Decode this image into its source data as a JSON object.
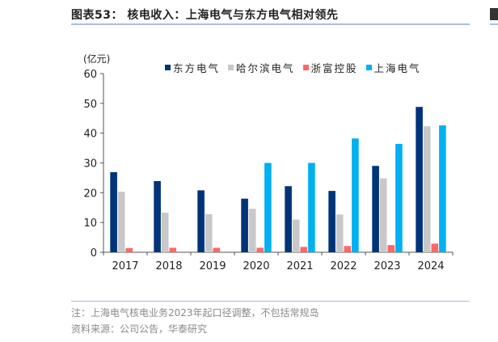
{
  "title": "图表53：  核电收入：上海电气与东方电气相对领先",
  "note": "注：上海电气核电业务2023年起口径调整，不包括常规岛",
  "source": "资料来源：公司公告，华泰研究",
  "chart_data": {
    "type": "bar",
    "title": "",
    "ylabel": "(亿元)",
    "xlabel": "",
    "ylim": [
      0,
      60
    ],
    "yticks": [
      0,
      10,
      20,
      30,
      40,
      50,
      60
    ],
    "grid": false,
    "legend_position": "top",
    "categories": [
      "2017",
      "2018",
      "2019",
      "2020",
      "2021",
      "2022",
      "2023",
      "2024"
    ],
    "series": [
      {
        "name": "东方电气",
        "color": "#003478",
        "values": [
          26.9,
          23.9,
          20.8,
          18.0,
          22.2,
          20.6,
          29.0,
          48.8
        ]
      },
      {
        "name": "哈尔滨电气",
        "color": "#c8c8c8",
        "values": [
          20.3,
          13.3,
          12.8,
          14.6,
          11.0,
          12.7,
          24.8,
          42.3
        ]
      },
      {
        "name": "浙富控股",
        "color": "#ff6666",
        "values": [
          1.4,
          1.5,
          1.5,
          1.5,
          1.8,
          2.1,
          2.4,
          2.9
        ]
      },
      {
        "name": "上海电气",
        "color": "#00b0f0",
        "values": [
          null,
          null,
          null,
          30.0,
          30.0,
          38.2,
          36.4,
          42.6
        ]
      }
    ]
  }
}
